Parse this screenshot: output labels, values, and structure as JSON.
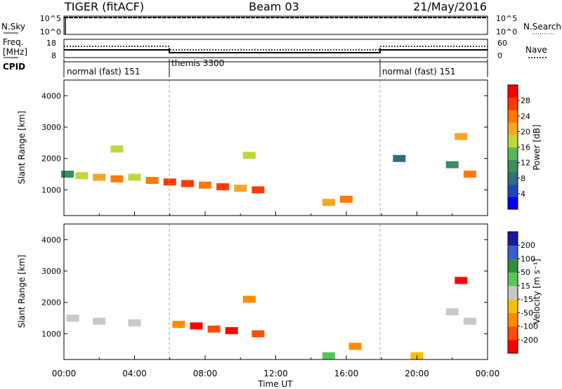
{
  "header": {
    "title": "TIGER (fitACF)",
    "beam": "Beam 03",
    "date": "21/May/2016"
  },
  "strip_panel": {
    "nsky_label": "N.Sky",
    "nsky_ticks": [
      "10^5",
      "10^0"
    ],
    "nsearch_ticks": [
      "10^5",
      "10^0"
    ],
    "nsearch_label": "N.Search",
    "freq_label_line1": "Freq.",
    "freq_label_line2": "[MHz]",
    "freq_ticks": [
      "18",
      "8"
    ],
    "nave_ticks": [
      "60",
      "0"
    ],
    "nave_label": "Nave",
    "cpid_label": "CPID",
    "cpid_segments": [
      {
        "label": "normal (fast) 151",
        "start": "00:00",
        "end": "06:00"
      },
      {
        "label": "themis 3300",
        "start": "06:00",
        "end": "18:00"
      },
      {
        "label": "normal (fast) 151",
        "start": "18:00",
        "end": "24:00"
      }
    ]
  },
  "colorbars": {
    "power": {
      "label": "Power [dB]",
      "ticks": [
        "28",
        "24",
        "20",
        "16",
        "12",
        "8",
        "4"
      ],
      "colors": [
        "#0000ff",
        "#1e46b4",
        "#2f6e7a",
        "#3a8f5e",
        "#58b85a",
        "#c0d83a",
        "#f5a623",
        "#ff7a00",
        "#ff3a00",
        "#ff0000"
      ]
    },
    "velocity": {
      "label": "Velocity [m s⁻¹]",
      "ticks": [
        "200",
        "100",
        "50",
        "15",
        "-15",
        "-50",
        "-100",
        "-200"
      ],
      "colors": [
        "#ff0000",
        "#ff4d00",
        "#ff8c00",
        "#f5c000",
        "#c8c8c8",
        "#58c85a",
        "#2f8f3a",
        "#3a5fcd",
        "#1a1aa0"
      ]
    }
  },
  "chart_data": [
    {
      "type": "heatmap",
      "title": "Power",
      "xlabel": "Time UT",
      "ylabel": "Slant Range [km]",
      "x_ticks": [
        "00:00",
        "04:00",
        "08:00",
        "12:00",
        "16:00",
        "20:00",
        "00:00"
      ],
      "y_ticks": [
        "1000",
        "2000",
        "3000",
        "4000"
      ],
      "xlim_hours": [
        0,
        24
      ],
      "ylim_km": [
        180,
        4500
      ],
      "colorbar": "Power [dB]",
      "cells": [
        {
          "t": 0.2,
          "r": 1500,
          "v": 12
        },
        {
          "t": 1.0,
          "r": 1450,
          "v": 16
        },
        {
          "t": 2.0,
          "r": 1400,
          "v": 20
        },
        {
          "t": 3.0,
          "r": 1350,
          "v": 24
        },
        {
          "t": 4.0,
          "r": 1400,
          "v": 16
        },
        {
          "t": 5.0,
          "r": 1300,
          "v": 24
        },
        {
          "t": 6.0,
          "r": 1250,
          "v": 28
        },
        {
          "t": 7.0,
          "r": 1200,
          "v": 28
        },
        {
          "t": 8.0,
          "r": 1150,
          "v": 24
        },
        {
          "t": 9.0,
          "r": 1100,
          "v": 28
        },
        {
          "t": 10.0,
          "r": 1050,
          "v": 20
        },
        {
          "t": 11.0,
          "r": 1000,
          "v": 28
        },
        {
          "t": 10.5,
          "r": 2100,
          "v": 16
        },
        {
          "t": 15.0,
          "r": 600,
          "v": 20
        },
        {
          "t": 16.0,
          "r": 700,
          "v": 24
        },
        {
          "t": 19.0,
          "r": 2000,
          "v": 8
        },
        {
          "t": 22.0,
          "r": 1800,
          "v": 12
        },
        {
          "t": 23.0,
          "r": 1500,
          "v": 24
        },
        {
          "t": 22.5,
          "r": 2700,
          "v": 20
        },
        {
          "t": 3.0,
          "r": 2300,
          "v": 16
        }
      ]
    },
    {
      "type": "heatmap",
      "title": "Velocity",
      "xlabel": "Time UT",
      "ylabel": "Slant Range [km]",
      "x_ticks": [
        "00:00",
        "04:00",
        "08:00",
        "12:00",
        "16:00",
        "20:00",
        "00:00"
      ],
      "y_ticks": [
        "1000",
        "2000",
        "3000",
        "4000"
      ],
      "xlim_hours": [
        0,
        24
      ],
      "ylim_km": [
        180,
        4500
      ],
      "colorbar": "Velocity [m s⁻¹]",
      "cells": [
        {
          "t": 0.5,
          "r": 1500,
          "v": 0
        },
        {
          "t": 2.0,
          "r": 1400,
          "v": 5
        },
        {
          "t": 4.0,
          "r": 1350,
          "v": -10
        },
        {
          "t": 6.5,
          "r": 1300,
          "v": -80
        },
        {
          "t": 7.5,
          "r": 1250,
          "v": -200
        },
        {
          "t": 8.5,
          "r": 1150,
          "v": -150
        },
        {
          "t": 9.5,
          "r": 1100,
          "v": -200
        },
        {
          "t": 11.0,
          "r": 1000,
          "v": -120
        },
        {
          "t": 10.5,
          "r": 2100,
          "v": -60
        },
        {
          "t": 15.0,
          "r": 300,
          "v": 40
        },
        {
          "t": 16.5,
          "r": 600,
          "v": -50
        },
        {
          "t": 20.0,
          "r": 300,
          "v": -30
        },
        {
          "t": 22.0,
          "r": 1700,
          "v": 0
        },
        {
          "t": 23.0,
          "r": 1400,
          "v": 5
        },
        {
          "t": 22.5,
          "r": 2700,
          "v": -200
        }
      ]
    }
  ]
}
